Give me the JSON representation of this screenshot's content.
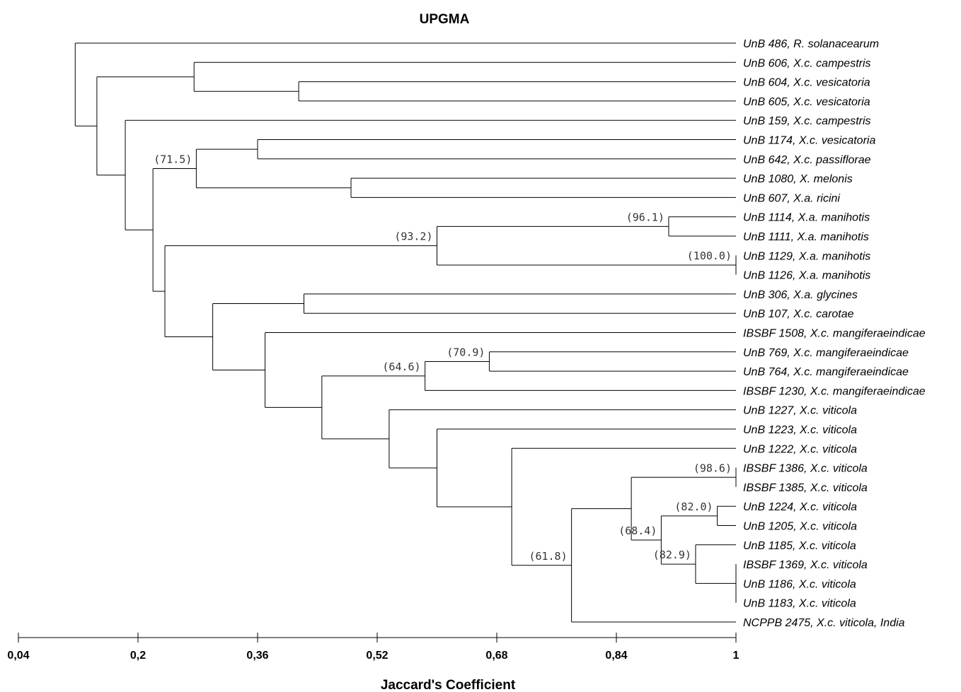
{
  "title": "UPGMA",
  "xlabel": "Jaccard's Coefficient",
  "axis": {
    "ticks": [
      {
        "value": 0.04,
        "label": "0,04"
      },
      {
        "value": 0.2,
        "label": "0,2"
      },
      {
        "value": 0.36,
        "label": "0,36"
      },
      {
        "value": 0.52,
        "label": "0,52"
      },
      {
        "value": 0.68,
        "label": "0,68"
      },
      {
        "value": 0.84,
        "label": "0,84"
      },
      {
        "value": 1.0,
        "label": "1"
      }
    ],
    "range": [
      0.04,
      1.0
    ]
  },
  "leaves": [
    "UnB 486, R. solanacearum",
    "UnB 606, X.c. campestris",
    "UnB 604, X.c. vesicatoria",
    "UnB 605, X.c. vesicatoria",
    "UnB 159, X.c. campestris",
    "UnB 1174, X.c. vesicatoria",
    "UnB 642, X.c. passiflorae",
    "UnB 1080, X. melonis",
    "UnB 607, X.a. ricini",
    "UnB 1114, X.a. manihotis",
    "UnB 1111, X.a. manihotis",
    "UnB 1129, X.a. manihotis",
    "UnB 1126, X.a. manihotis",
    "UnB 306, X.a. glycines",
    "UnB 107, X.c. carotae",
    "IBSBF 1508,  X.c. mangiferaeindicae",
    "UnB 769, X.c. mangiferaeindicae",
    "UnB 764, X.c. mangiferaeindicae",
    "IBSBF 1230, X.c. mangiferaeindicae",
    "UnB 1227, X.c. viticola",
    "UnB 1223, X.c. viticola",
    "UnB 1222, X.c. viticola",
    "IBSBF 1386,  X.c. viticola",
    "IBSBF 1385, X.c. viticola",
    "UnB 1224, X.c. viticola",
    "UnB 1205, X.c. viticola",
    "UnB 1185, X.c. viticola",
    "IBSBF 1369, X.c. viticola",
    "UnB 1186, X.c. viticola",
    "UnB 1183, X.c. viticola",
    "NCPPB 2475, X.c. viticola, India"
  ],
  "nodes": [
    {
      "id": "n3",
      "sim": 0.415,
      "children": [
        "L2",
        "L3"
      ]
    },
    {
      "id": "n2",
      "sim": 0.275,
      "children": [
        "L1",
        "n3"
      ]
    },
    {
      "id": "n7",
      "sim": 0.36,
      "children": [
        "L5",
        "L6"
      ]
    },
    {
      "id": "n8",
      "sim": 0.485,
      "children": [
        "L7",
        "L8"
      ]
    },
    {
      "id": "n6",
      "sim": 0.278,
      "children": [
        "n7",
        "n8"
      ],
      "bootstrap": "(71.5)"
    },
    {
      "id": "n11",
      "sim": 0.91,
      "children": [
        "L9",
        "L10"
      ],
      "bootstrap": "(96.1)"
    },
    {
      "id": "n12",
      "sim": 1.0,
      "children": [
        "L11",
        "L12"
      ],
      "bootstrap": "(100.0)"
    },
    {
      "id": "n10",
      "sim": 0.6,
      "children": [
        "n11",
        "n12"
      ],
      "bootstrap": "(93.2)"
    },
    {
      "id": "n14",
      "sim": 0.422,
      "children": [
        "L13",
        "L14"
      ]
    },
    {
      "id": "n17",
      "sim": 0.67,
      "children": [
        "L16",
        "L17"
      ],
      "bootstrap": "(70.9)"
    },
    {
      "id": "n16",
      "sim": 0.584,
      "children": [
        "n17",
        "L18"
      ],
      "bootstrap": "(64.6)"
    },
    {
      "id": "n21",
      "sim": 1.0,
      "children": [
        "L22",
        "L23"
      ],
      "bootstrap": "(98.6)"
    },
    {
      "id": "n23",
      "sim": 0.975,
      "children": [
        "L24",
        "L25"
      ],
      "bootstrap": "(82.0)"
    },
    {
      "id": "n25",
      "sim": 1.0,
      "children": [
        "L27",
        "L28",
        "L29"
      ]
    },
    {
      "id": "n24",
      "sim": 0.946,
      "children": [
        "L26",
        "n25"
      ],
      "bootstrap": "(82.9)"
    },
    {
      "id": "n22",
      "sim": 0.9,
      "children": [
        "n23",
        "n24"
      ],
      "bootstrap": "(68.4)"
    },
    {
      "id": "n20",
      "sim": 0.86,
      "children": [
        "n21",
        "n22"
      ]
    },
    {
      "id": "n19",
      "sim": 0.78,
      "children": [
        "n20",
        "L30"
      ],
      "bootstrap": "(61.8)"
    },
    {
      "id": "n18b",
      "sim": 0.7,
      "children": [
        "L21",
        "n19"
      ]
    },
    {
      "id": "n18a",
      "sim": 0.6,
      "children": [
        "L20",
        "n18b"
      ]
    },
    {
      "id": "n18",
      "sim": 0.536,
      "children": [
        "L19",
        "n18a"
      ]
    },
    {
      "id": "n15b",
      "sim": 0.446,
      "children": [
        "n16",
        "n18"
      ]
    },
    {
      "id": "n15",
      "sim": 0.37,
      "children": [
        "L15",
        "n15b"
      ]
    },
    {
      "id": "n13",
      "sim": 0.3,
      "children": [
        "n14",
        "n15"
      ]
    },
    {
      "id": "n9",
      "sim": 0.236,
      "children": [
        "n10",
        "n13"
      ]
    },
    {
      "id": "n5",
      "sim": 0.22,
      "children": [
        "n6",
        "n9"
      ]
    },
    {
      "id": "n4",
      "sim": 0.183,
      "children": [
        "L4",
        "n5"
      ]
    },
    {
      "id": "n1b",
      "sim": 0.145,
      "children": [
        "n2",
        "n4"
      ]
    },
    {
      "id": "root",
      "sim": 0.116,
      "children": [
        "L0",
        "n1b"
      ]
    }
  ]
}
